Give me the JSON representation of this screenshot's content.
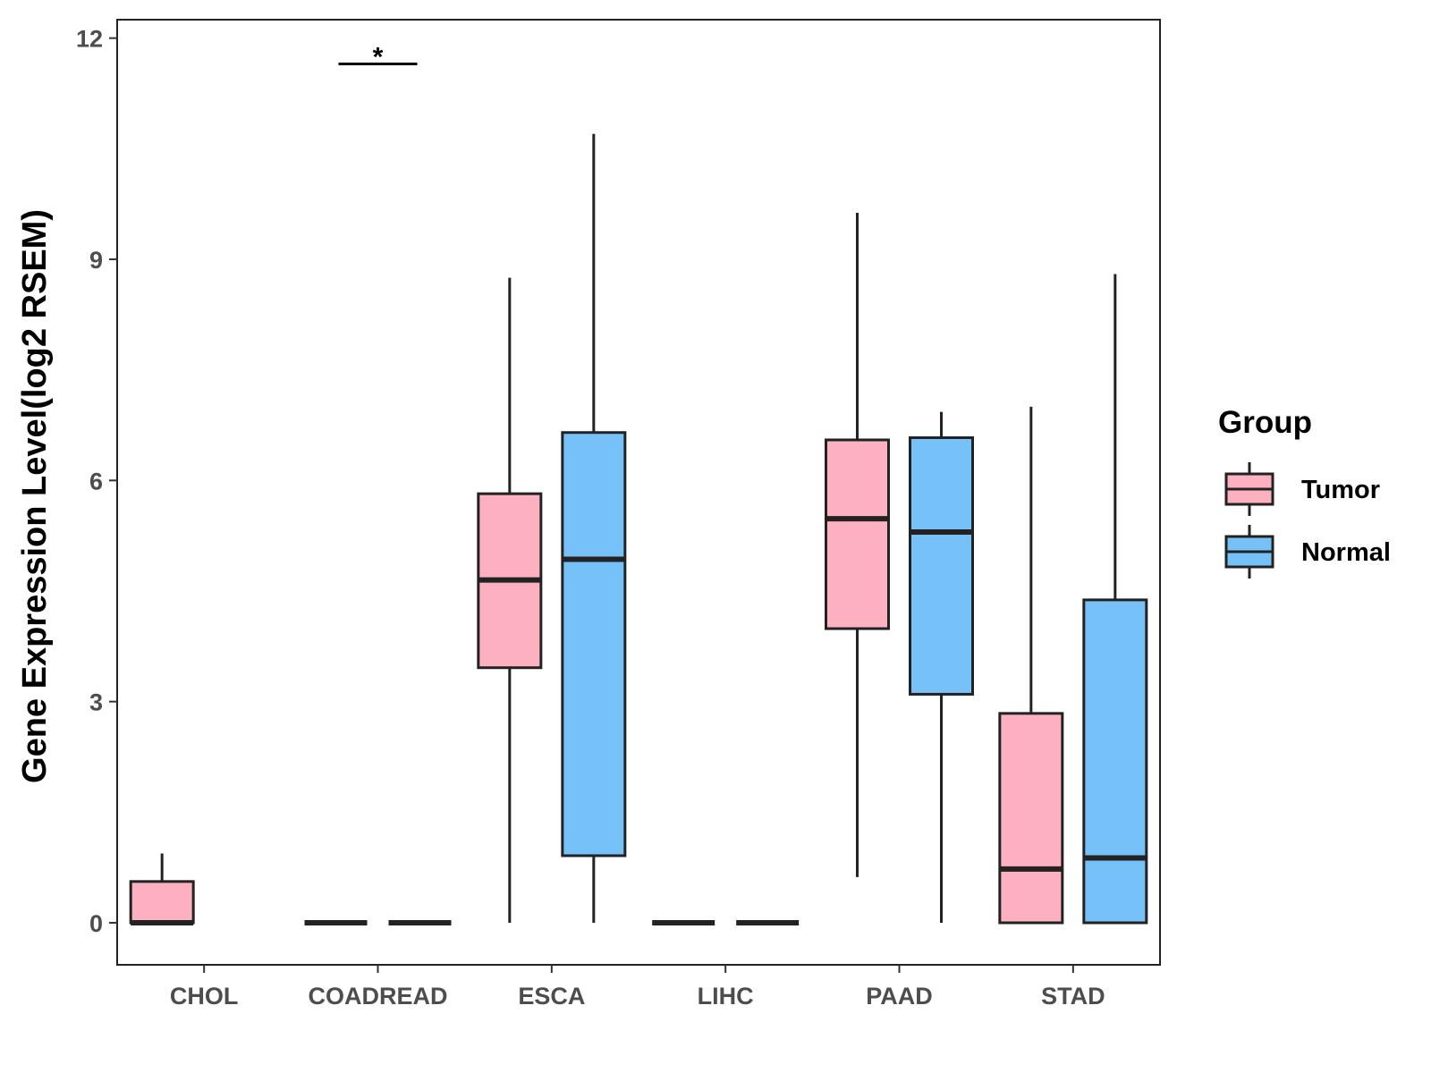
{
  "chart_data": {
    "type": "boxplot",
    "title": "",
    "xlabel": "",
    "ylabel": "Gene Expression Level(log2 RSEM)",
    "ylim": [
      -0.57,
      12.25
    ],
    "yticks": [
      0,
      3,
      6,
      9,
      12
    ],
    "ytick_labels": [
      "0",
      "3",
      "6",
      "9",
      "12"
    ],
    "categories": [
      "CHOL",
      "COADREAD",
      "ESCA",
      "LIHC",
      "PAAD",
      "STAD"
    ],
    "grid": false,
    "legend": {
      "title": "Group",
      "position": "right",
      "entries": [
        {
          "name": "Tumor",
          "color": "#fcb0c0"
        },
        {
          "name": "Normal",
          "color": "#77c1f9"
        }
      ]
    },
    "series": [
      {
        "name": "Tumor",
        "color": "#fcb0c0",
        "boxes": [
          {
            "category": "CHOL",
            "min": 0,
            "q1": 0,
            "median": 0,
            "q3": 0.56,
            "max": 0.94
          },
          {
            "category": "COADREAD",
            "min": 0,
            "q1": 0,
            "median": 0,
            "q3": 0,
            "max": 0
          },
          {
            "category": "ESCA",
            "min": 0,
            "q1": 3.46,
            "median": 4.65,
            "q3": 5.82,
            "max": 8.75
          },
          {
            "category": "LIHC",
            "min": 0,
            "q1": 0,
            "median": 0,
            "q3": 0,
            "max": 0
          },
          {
            "category": "PAAD",
            "min": 0.62,
            "q1": 3.99,
            "median": 5.48,
            "q3": 6.55,
            "max": 9.63
          },
          {
            "category": "STAD",
            "min": 0,
            "q1": 0,
            "median": 0.73,
            "q3": 2.84,
            "max": 7.0
          }
        ]
      },
      {
        "name": "Normal",
        "color": "#77c1f9",
        "boxes": [
          {
            "category": "CHOL",
            "min": null,
            "q1": null,
            "median": null,
            "q3": null,
            "max": null
          },
          {
            "category": "COADREAD",
            "min": 0,
            "q1": 0,
            "median": 0,
            "q3": 0,
            "max": 0
          },
          {
            "category": "ESCA",
            "min": 0,
            "q1": 0.91,
            "median": 4.93,
            "q3": 6.65,
            "max": 10.7
          },
          {
            "category": "LIHC",
            "min": 0,
            "q1": 0,
            "median": 0,
            "q3": 0,
            "max": 0
          },
          {
            "category": "PAAD",
            "min": 0,
            "q1": 3.1,
            "median": 5.3,
            "q3": 6.58,
            "max": 6.93
          },
          {
            "category": "STAD",
            "min": 0,
            "q1": 0,
            "median": 0.88,
            "q3": 4.38,
            "max": 8.8
          }
        ]
      }
    ],
    "annotations": [
      {
        "category": "COADREAD",
        "label": "*",
        "y": 11.65
      }
    ]
  }
}
